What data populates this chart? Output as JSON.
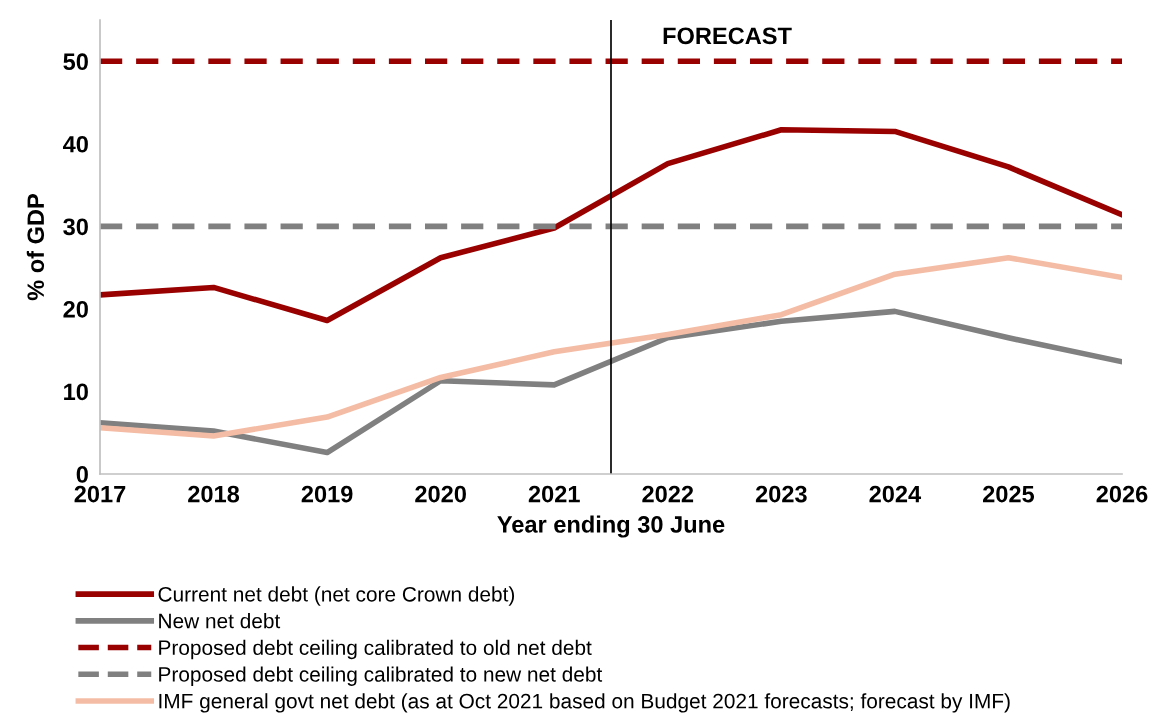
{
  "chart_data": {
    "type": "line",
    "xlabel": "Year ending 30 June",
    "ylabel": "% of GDP",
    "x": [
      2017,
      2018,
      2019,
      2020,
      2021,
      2022,
      2023,
      2024,
      2025,
      2026
    ],
    "xlim": [
      2017,
      2026
    ],
    "xticks": [
      2017,
      2018,
      2019,
      2020,
      2021,
      2022,
      2023,
      2024,
      2025,
      2026
    ],
    "ylim": [
      0,
      55
    ],
    "yticks": [
      0,
      10,
      20,
      30,
      40,
      50
    ],
    "grid": false,
    "legend": "bottom",
    "marker": "none",
    "series": [
      {
        "name": "Current net debt (net core Crown debt)",
        "color": "#990000",
        "line_style": "solid",
        "values": [
          21.7,
          22.6,
          18.6,
          26.2,
          29.8,
          37.6,
          41.7,
          41.5,
          37.2,
          31.4
        ]
      },
      {
        "name": "New net debt",
        "color": "#808080",
        "line_style": "solid",
        "values": [
          6.2,
          5.2,
          2.6,
          11.3,
          10.8,
          16.5,
          18.5,
          19.7,
          16.5,
          13.6
        ]
      },
      {
        "name": "Proposed debt ceiling calibrated to old net debt",
        "color": "#990000",
        "line_style": "dashed",
        "values": [
          50,
          50,
          50,
          50,
          50,
          50,
          50,
          50,
          50,
          50
        ]
      },
      {
        "name": "Proposed debt ceiling calibrated to new net debt",
        "color": "#808080",
        "line_style": "dashed",
        "values": [
          30,
          30,
          30,
          30,
          30,
          30,
          30,
          30,
          30,
          30
        ]
      },
      {
        "name": "IMF general govt net debt (as at Oct 2021 based on Budget 2021 forecasts; forecast by IMF)",
        "color": "#f4bca4",
        "line_style": "solid",
        "values": [
          5.6,
          4.6,
          6.9,
          11.7,
          14.8,
          16.9,
          19.3,
          24.2,
          26.2,
          23.8
        ]
      }
    ],
    "ref_lines": [
      {
        "axis": "x",
        "value": 2021.5,
        "label": "FORECAST",
        "color": "#000000",
        "line_style": "solid"
      }
    ]
  }
}
